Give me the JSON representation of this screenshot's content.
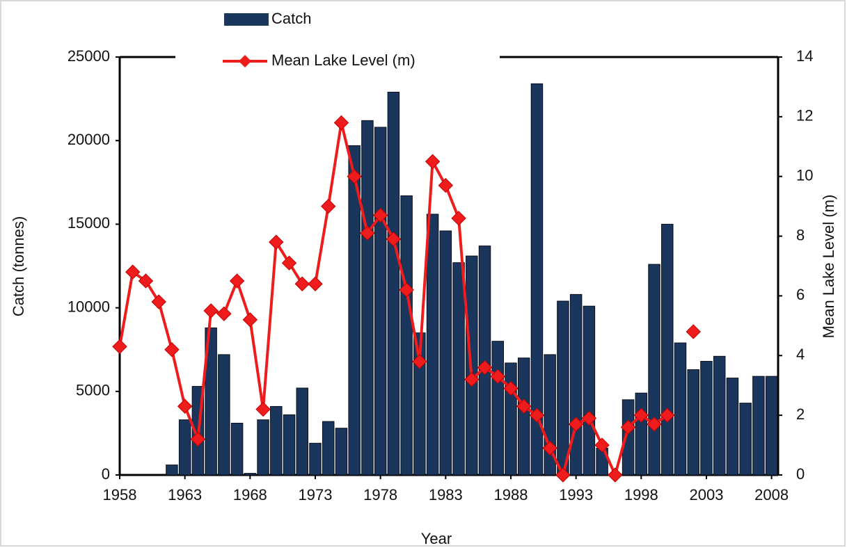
{
  "chart_data": {
    "type": "bar_line",
    "x_label": "Year",
    "y_label": "Catch (tonnes)",
    "y2_label": "Mean Lake Level (m)",
    "legend": "top",
    "x": [
      1958,
      1959,
      1960,
      1961,
      1962,
      1963,
      1964,
      1965,
      1966,
      1967,
      1968,
      1969,
      1970,
      1971,
      1972,
      1973,
      1974,
      1975,
      1976,
      1977,
      1978,
      1979,
      1980,
      1981,
      1982,
      1983,
      1984,
      1985,
      1986,
      1987,
      1988,
      1989,
      1990,
      1991,
      1992,
      1993,
      1994,
      1995,
      1996,
      1997,
      1998,
      1999,
      2000,
      2001,
      2002,
      2003,
      2004,
      2005,
      2006,
      2007,
      2008
    ],
    "xlim": [
      1958,
      2008.5
    ],
    "xticks": [
      1958,
      1963,
      1968,
      1973,
      1978,
      1983,
      1988,
      1993,
      1998,
      2003,
      2008
    ],
    "ylim": [
      0,
      25000
    ],
    "yticks": [
      0,
      5000,
      10000,
      15000,
      20000,
      25000
    ],
    "y2lim": [
      0,
      14
    ],
    "y2ticks": [
      0,
      2,
      4,
      6,
      8,
      10,
      12,
      14
    ],
    "series": [
      {
        "name": "Catch",
        "type": "bar",
        "color": "#1b365d",
        "values": [
          0,
          0,
          0,
          0,
          600,
          3300,
          5300,
          8800,
          7200,
          3100,
          100,
          3300,
          4100,
          3600,
          5200,
          1900,
          3200,
          2800,
          19700,
          21200,
          20800,
          22900,
          16700,
          8500,
          15600,
          14600,
          12700,
          13100,
          13700,
          8000,
          6700,
          7000,
          23400,
          7200,
          10400,
          10800,
          10100,
          1600,
          0,
          4500,
          4900,
          12600,
          15000,
          7900,
          6300,
          6800,
          7100,
          5800,
          4300,
          5900,
          5900
        ]
      },
      {
        "name": "Mean Lake Level (m)",
        "type": "line",
        "axis": "y2",
        "color": "#ee1c1c",
        "values": [
          4.3,
          6.8,
          6.5,
          5.8,
          4.2,
          2.3,
          1.2,
          5.5,
          5.4,
          6.5,
          5.2,
          2.2,
          7.8,
          7.1,
          6.4,
          6.4,
          9.0,
          11.8,
          10.0,
          8.1,
          8.7,
          7.9,
          6.2,
          3.8,
          10.5,
          9.7,
          8.6,
          3.2,
          3.6,
          3.3,
          2.9,
          2.3,
          2.0,
          0.9,
          0.0,
          1.7,
          1.9,
          1.0,
          0.0,
          1.6,
          2.0,
          1.7,
          2.0,
          null,
          4.8,
          null,
          null,
          null,
          null,
          null,
          null
        ]
      }
    ]
  }
}
